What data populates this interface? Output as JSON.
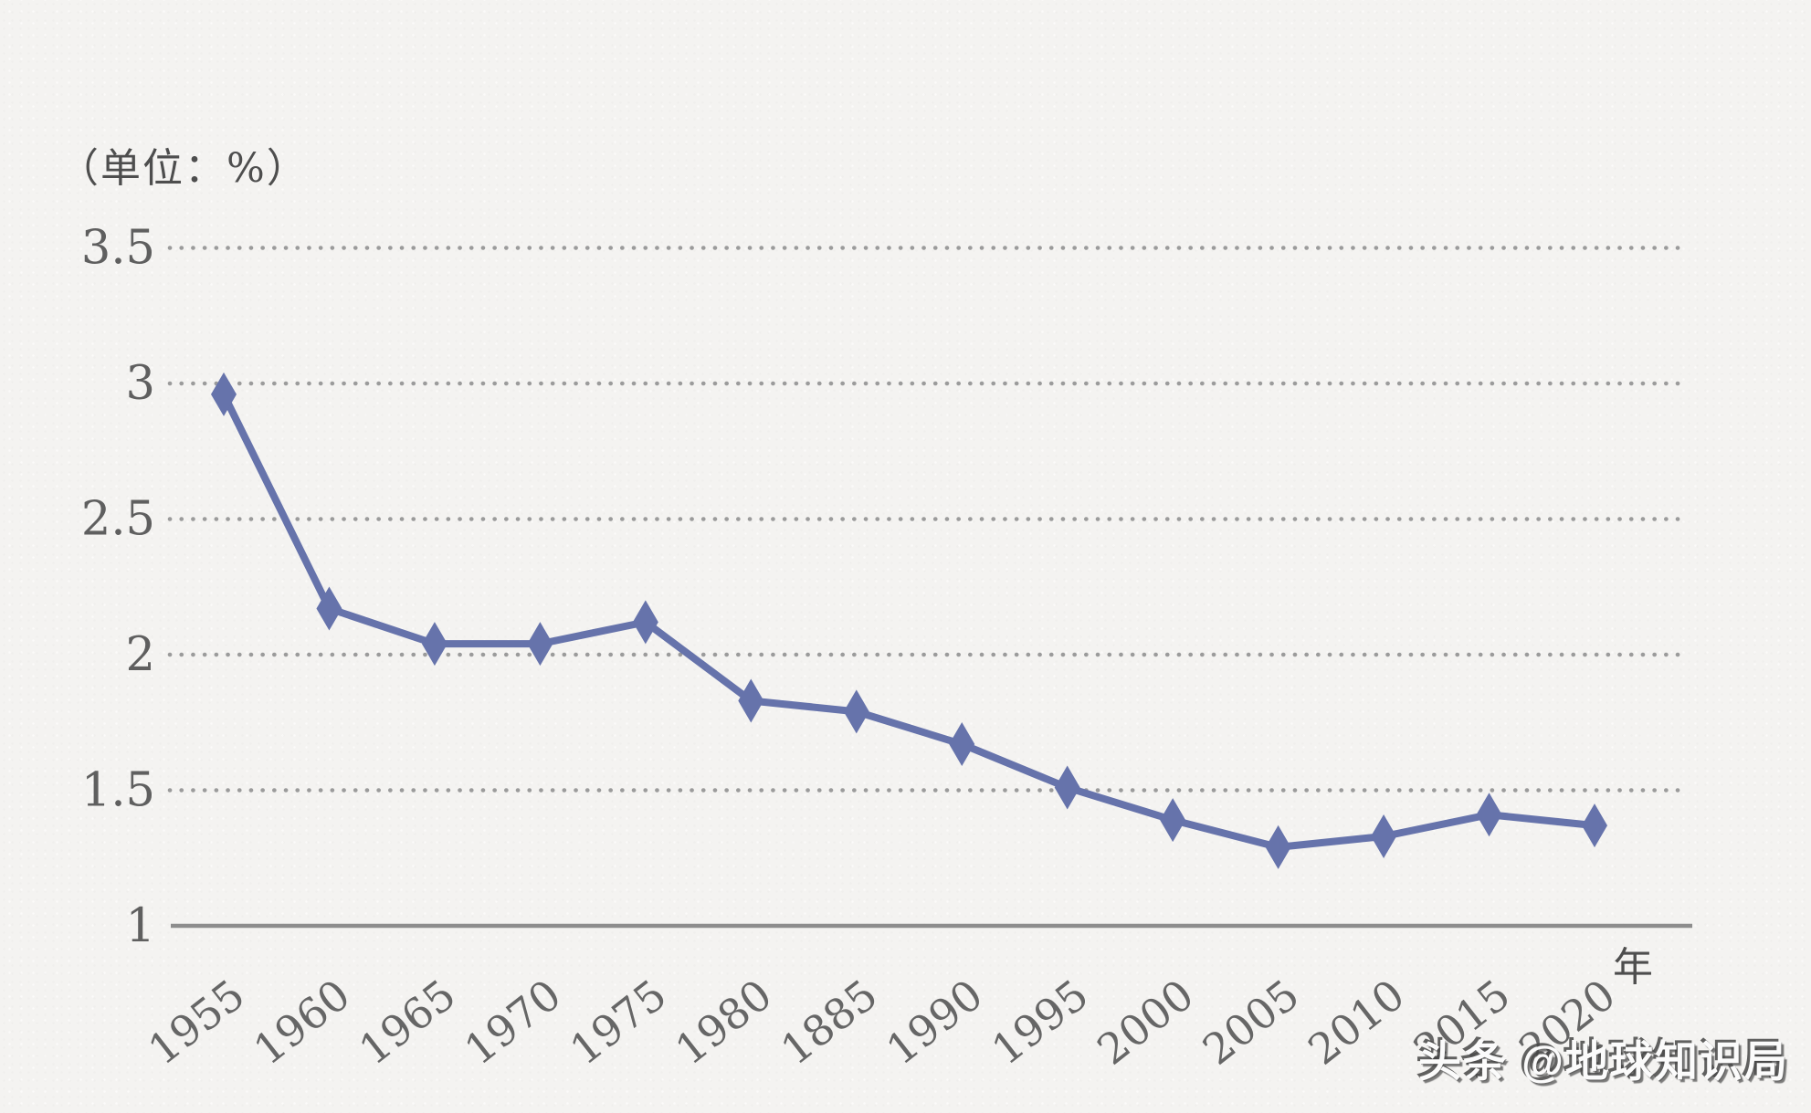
{
  "page": {
    "background_color": "#f4f3f1"
  },
  "chart_data": {
    "type": "line",
    "title": "",
    "unit_label": "（单位：%）",
    "x_axis_suffix": "年",
    "categories": [
      "1955",
      "1960",
      "1965",
      "1970",
      "1975",
      "1980",
      "1885",
      "1990",
      "1995",
      "2000",
      "2005",
      "2010",
      "2015",
      "2020"
    ],
    "values": [
      2.96,
      2.17,
      2.04,
      2.04,
      2.12,
      1.83,
      1.79,
      1.67,
      1.51,
      1.39,
      1.29,
      1.33,
      1.41,
      1.37
    ],
    "ylim": [
      1,
      3.5
    ],
    "yticks": [
      1,
      1.5,
      2,
      2.5,
      3,
      3.5
    ],
    "grid": "horizontal-dotted",
    "legend": "none",
    "marker": "diamond",
    "colors": {
      "line": "#6673ab",
      "marker": "#6673ab",
      "gridline": "#9b9b9b",
      "axis": "#8d8d8d",
      "tick_label": "#5f5f5f",
      "x_label": "#666666",
      "unit_label": "#4e4e4e"
    }
  },
  "watermark": {
    "text": "头条 @地球知识局"
  }
}
